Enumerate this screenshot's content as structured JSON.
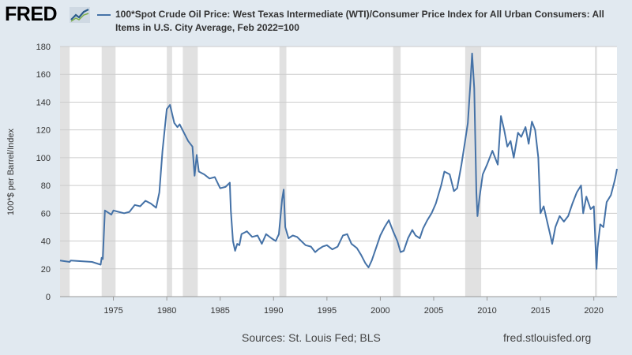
{
  "header": {
    "logo_text": "FRED",
    "logo_icon": "line-graph-icon",
    "legend_label": "100*Spot Crude Oil Price: West Texas Intermediate (WTI)/Consumer Price Index for All Urban Consumers: All Items in U.S. City Average, Feb 2022=100"
  },
  "footer": {
    "sources": "Sources: St. Louis Fed; BLS",
    "url": "fred.stlouisfed.org"
  },
  "colors": {
    "line": "#4572a7",
    "recession": "#e1e1e1",
    "plot_bg": "#ffffff",
    "page_bg": "#e1e9f0",
    "grid": "#cccccc"
  },
  "chart_data": {
    "type": "line",
    "title": "100*Spot Crude Oil Price: West Texas Intermediate (WTI)/Consumer Price Index for All Urban Consumers: All Items in U.S. City Average, Feb 2022=100",
    "xlabel": "",
    "ylabel": "100*$ per Barrel/Index",
    "xlim": [
      1970.0,
      2022.17
    ],
    "ylim": [
      0,
      180
    ],
    "yticks": [
      0,
      20,
      40,
      60,
      80,
      100,
      120,
      140,
      160,
      180
    ],
    "xticks": [
      1975,
      1980,
      1985,
      1990,
      1995,
      2000,
      2005,
      2010,
      2015,
      2020
    ],
    "grid": "horizontal",
    "legend": "top",
    "recessions": [
      [
        1970.0,
        1970.9
      ],
      [
        1973.9,
        1975.2
      ],
      [
        1980.0,
        1980.5
      ],
      [
        1981.5,
        1982.9
      ],
      [
        1990.55,
        1991.2
      ],
      [
        2001.2,
        2001.9
      ],
      [
        2007.95,
        2009.45
      ],
      [
        2020.1,
        2020.3
      ]
    ],
    "series": [
      {
        "name": "100*Spot Crude Oil Price: West Texas Intermediate (WTI)/Consumer Price Index for All Urban Consumers: All Items in U.S. City Average, Feb 2022=100",
        "x": [
          1970.0,
          1970.9,
          1971.0,
          1972.0,
          1973.0,
          1973.8,
          1973.9,
          1974.0,
          1974.2,
          1974.8,
          1975.0,
          1975.5,
          1976.0,
          1976.5,
          1977.0,
          1977.5,
          1978.0,
          1978.5,
          1979.0,
          1979.3,
          1979.6,
          1979.8,
          1980.0,
          1980.3,
          1980.7,
          1981.0,
          1981.2,
          1981.6,
          1982.0,
          1982.4,
          1982.6,
          1982.8,
          1983.0,
          1983.5,
          1984.0,
          1984.5,
          1985.0,
          1985.5,
          1985.9,
          1986.0,
          1986.2,
          1986.4,
          1986.6,
          1986.8,
          1987.0,
          1987.5,
          1988.0,
          1988.5,
          1988.9,
          1989.3,
          1989.8,
          1990.2,
          1990.5,
          1990.8,
          1990.95,
          1991.1,
          1991.4,
          1991.8,
          1992.2,
          1992.6,
          1993.0,
          1993.5,
          1993.9,
          1994.2,
          1994.6,
          1995.0,
          1995.5,
          1996.0,
          1996.5,
          1996.9,
          1997.3,
          1997.8,
          1998.2,
          1998.6,
          1998.9,
          1999.2,
          1999.6,
          2000.0,
          2000.4,
          2000.8,
          2001.2,
          2001.6,
          2001.9,
          2002.2,
          2002.6,
          2003.0,
          2003.3,
          2003.7,
          2004.0,
          2004.4,
          2004.8,
          2005.2,
          2005.7,
          2006.0,
          2006.5,
          2006.9,
          2007.2,
          2007.6,
          2007.9,
          2008.2,
          2008.45,
          2008.6,
          2008.8,
          2009.0,
          2009.1,
          2009.3,
          2009.6,
          2010.0,
          2010.5,
          2011.0,
          2011.3,
          2011.6,
          2011.9,
          2012.2,
          2012.5,
          2012.9,
          2013.2,
          2013.6,
          2013.9,
          2014.2,
          2014.5,
          2014.8,
          2015.0,
          2015.3,
          2015.6,
          2015.9,
          2016.1,
          2016.4,
          2016.8,
          2017.2,
          2017.6,
          2018.0,
          2018.4,
          2018.8,
          2019.0,
          2019.3,
          2019.7,
          2020.0,
          2020.25,
          2020.35,
          2020.6,
          2020.9,
          2021.2,
          2021.6,
          2021.9,
          2022.0,
          2022.17
        ],
        "values": [
          26,
          25,
          26,
          25.5,
          25,
          23,
          28,
          27,
          62,
          59,
          62,
          61,
          60,
          61,
          66,
          65,
          69,
          67,
          64,
          75,
          105,
          120,
          135,
          138,
          125,
          122,
          124,
          118,
          112,
          108,
          87,
          102,
          90,
          88,
          85,
          86,
          78,
          79,
          82,
          62,
          40,
          33,
          38,
          37,
          45,
          47,
          43,
          44,
          38,
          45,
          42,
          40,
          45,
          70,
          77,
          50,
          42,
          44,
          43,
          40,
          37,
          36,
          32,
          34,
          36,
          37,
          34,
          36,
          44,
          45,
          38,
          35,
          30,
          24,
          21,
          26,
          35,
          44,
          50,
          55,
          47,
          40,
          32,
          33,
          42,
          48,
          44,
          42,
          49,
          55,
          60,
          67,
          80,
          90,
          88,
          76,
          78,
          95,
          110,
          125,
          155,
          175,
          150,
          75,
          58,
          72,
          88,
          95,
          105,
          95,
          130,
          120,
          108,
          112,
          100,
          118,
          115,
          122,
          110,
          126,
          120,
          100,
          60,
          65,
          55,
          45,
          38,
          50,
          58,
          54,
          58,
          67,
          75,
          80,
          60,
          72,
          63,
          65,
          20,
          35,
          52,
          50,
          68,
          73,
          82,
          85,
          92
        ]
      }
    ]
  }
}
